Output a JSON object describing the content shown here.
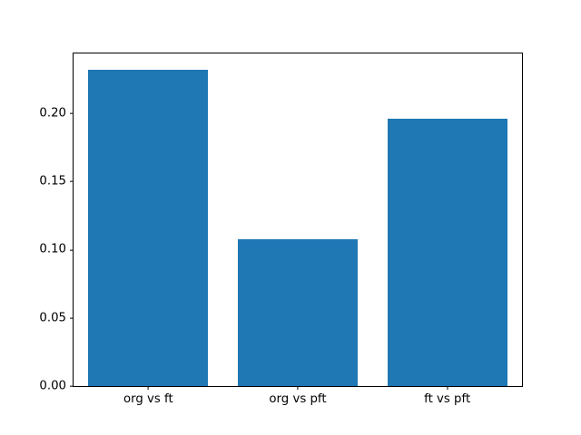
{
  "chart_data": {
    "type": "bar",
    "categories": [
      "org vs ft",
      "org vs pft",
      "ft vs pft"
    ],
    "values": [
      0.232,
      0.108,
      0.196
    ],
    "title": "",
    "xlabel": "",
    "ylabel": "",
    "ylim": [
      0,
      0.2443
    ],
    "yticks": [
      0,
      0.05,
      0.1,
      0.15,
      0.2
    ],
    "ytick_labels": [
      "0.00",
      "0.05",
      "0.10",
      "0.15",
      "0.20"
    ],
    "bar_color": "#1f77b4",
    "bar_width_fraction": 0.8,
    "grid": false,
    "legend": null,
    "background_color": "#ffffff",
    "axis_color": "#000000"
  }
}
